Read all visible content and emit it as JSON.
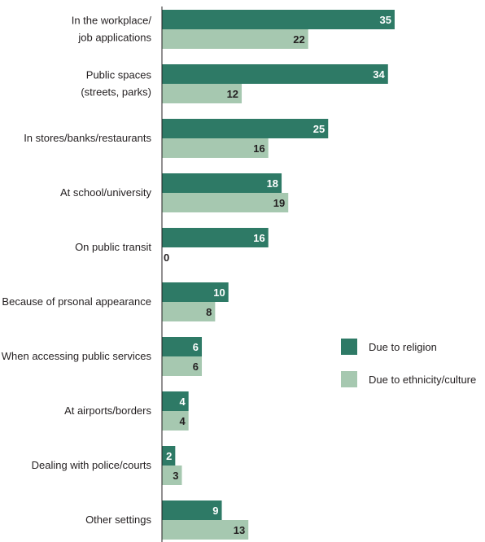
{
  "chart_data": {
    "type": "bar",
    "orientation": "horizontal",
    "categories": [
      [
        "In the workplace/",
        "job applications"
      ],
      [
        "Public spaces",
        "(streets, parks)"
      ],
      [
        "In stores/banks/restaurants"
      ],
      [
        "At school/university"
      ],
      [
        "On public transit"
      ],
      [
        "Because of prsonal appearance"
      ],
      [
        "When accessing public services"
      ],
      [
        "At airports/borders"
      ],
      [
        "Dealing with police/courts"
      ],
      [
        "Other settings"
      ]
    ],
    "series": [
      {
        "name": "Due to religion",
        "color": "#2e7a66",
        "label_color": "#ffffff",
        "values": [
          35,
          34,
          25,
          18,
          16,
          10,
          6,
          4,
          2,
          9
        ]
      },
      {
        "name": "Due to ethnicity/culture",
        "color": "#a6c8b0",
        "label_color": "#231f20",
        "values": [
          22,
          12,
          16,
          19,
          0,
          8,
          6,
          4,
          3,
          13
        ]
      }
    ],
    "legend": {
      "position": "right"
    },
    "grid": false
  }
}
